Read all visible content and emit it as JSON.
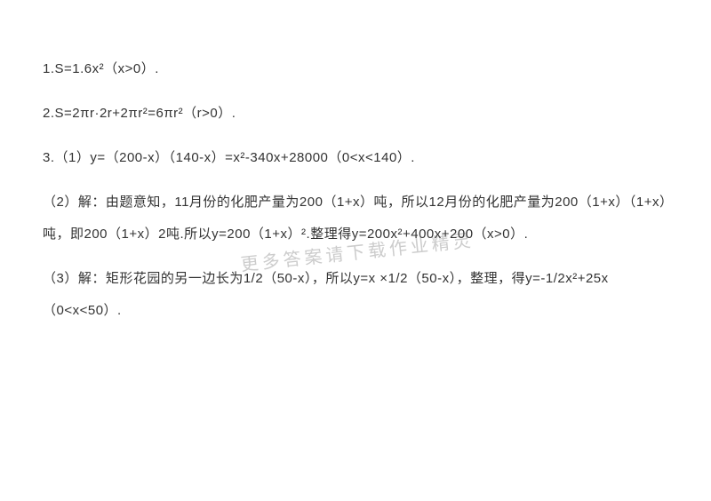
{
  "text_color": "#333333",
  "background_color": "#ffffff",
  "watermark_color": "#cccccc",
  "font_size": 15,
  "watermark_font_size": 20,
  "watermark_text": "更多答案请下载作业精灵",
  "lines": {
    "l1": "1.S=1.6x²（x>0）.",
    "l2": "2.S=2πr·2r+2πr²=6πr²（r>0）.",
    "l3": "3.（1）y=（200-x）（140-x）=x²-340x+28000（0<x<140）.",
    "l4": "（2）解：由题意知，11月份的化肥产量为200（1+x）吨，所以12月份的化肥产量为200（1+x）（1+x）吨，即200（1+x）2吨.所以y=200（1+x）².整理得y=200x²+400x+200（x>0）.",
    "l5": "（3）解：矩形花园的另一边长为1/2（50-x），所以y=x ×1/2（50-x），整理，得y=-1/2x²+25x（0<x<50）."
  }
}
